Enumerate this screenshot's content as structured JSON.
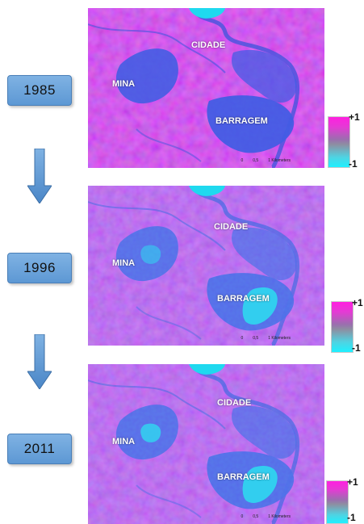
{
  "panels": [
    {
      "year": "1985",
      "labels": {
        "city": "CIDADE",
        "mine": "MINA",
        "dam": "BARRAGEM"
      },
      "scale": [
        "0",
        "0,5",
        "1 Kilometers"
      ],
      "legend": {
        "max": "+1",
        "min": "-1"
      }
    },
    {
      "year": "1996",
      "labels": {
        "city": "CIDADE",
        "mine": "MINA",
        "dam": "BARRAGEM"
      },
      "scale": [
        "0",
        "0,5",
        "1 Kilometers"
      ],
      "legend": {
        "max": "+1",
        "min": "-1"
      }
    },
    {
      "year": "2011",
      "labels": {
        "city": "CIDADE",
        "mine": "MINA",
        "dam": "BARRAGEM"
      },
      "scale": [
        "0",
        "0,5",
        "1 Kilometers"
      ],
      "legend": {
        "max": "+1",
        "min": "-1"
      }
    }
  ],
  "colors": {
    "high": "#ff1fe0",
    "low": "#1ff0ff",
    "background": "#c83cf0",
    "water": "#3a4ce0",
    "year_box": "#6fa6dc"
  },
  "icons": [
    "down-arrow-icon",
    "down-arrow-icon"
  ]
}
